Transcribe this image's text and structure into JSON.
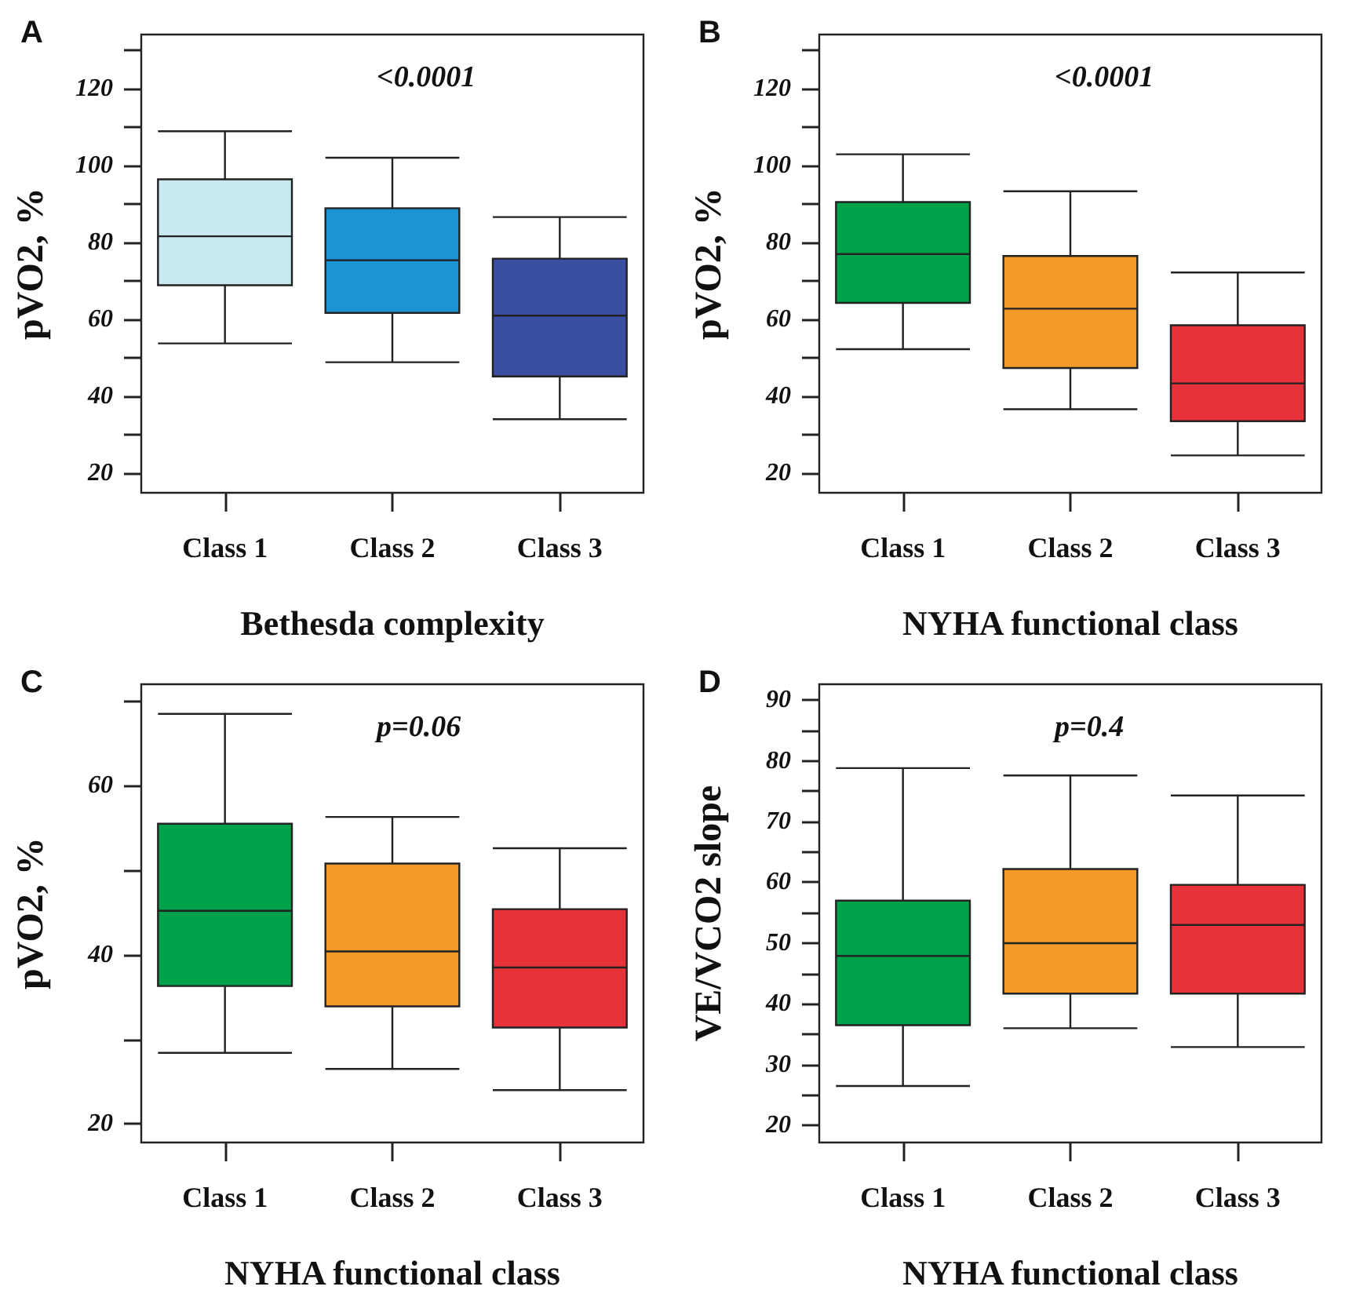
{
  "chart_data": [
    {
      "type": "box",
      "title": "A",
      "xlabel": "Bethesda complexity",
      "ylabel": "pVO2, %",
      "annotations": [
        "<0.0001"
      ],
      "categories": [
        "Class 1",
        "Class 2",
        "Class 3"
      ],
      "colors": [
        "#c9e9f1",
        "#1c93d2",
        "#3a4fa1"
      ],
      "boxes": [
        {
          "low": 53.8,
          "q1": 68.9,
          "median": 81.6,
          "q3": 96.4,
          "high": 108.9
        },
        {
          "low": 48.9,
          "q1": 61.7,
          "median": 75.4,
          "q3": 88.9,
          "high": 102
        },
        {
          "low": 34.1,
          "q1": 45.2,
          "median": 61,
          "q3": 75.8,
          "high": 86.6
        }
      ],
      "ylim": [
        15,
        134
      ],
      "yticks": [
        20,
        {
          "value": 30,
          "label": null
        },
        40,
        {
          "value": 50,
          "label": null
        },
        60,
        {
          "value": 70,
          "label": null
        },
        80,
        {
          "value": 90,
          "label": null
        },
        100,
        {
          "value": 110,
          "label": null
        },
        120,
        {
          "value": 130,
          "label": null
        }
      ]
    },
    {
      "type": "box",
      "title": "B",
      "xlabel": "NYHA functional class",
      "ylabel": "pVO2, %",
      "annotations": [
        "<0.0001"
      ],
      "categories": [
        "Class 1",
        "Class 2",
        "Class 3"
      ],
      "colors": [
        "#00a14b",
        "#f39a2a",
        "#e8323a"
      ],
      "boxes": [
        {
          "low": 52.3,
          "q1": 64.3,
          "median": 77,
          "q3": 90.5,
          "high": 102.9
        },
        {
          "low": 36.7,
          "q1": 47.4,
          "median": 62.8,
          "q3": 76.5,
          "high": 93.3
        },
        {
          "low": 24.7,
          "q1": 33.6,
          "median": 43.4,
          "q3": 58.5,
          "high": 72.2
        }
      ],
      "ylim": [
        15,
        134
      ],
      "yticks": [
        20,
        {
          "value": 30,
          "label": null
        },
        40,
        {
          "value": 50,
          "label": null
        },
        60,
        {
          "value": 70,
          "label": null
        },
        80,
        {
          "value": 90,
          "label": null
        },
        100,
        {
          "value": 110,
          "label": null
        },
        120,
        {
          "value": 130,
          "label": null
        }
      ]
    },
    {
      "type": "box",
      "title": "C",
      "xlabel": "NYHA functional class",
      "ylabel": "pVO2, %",
      "annotations": [
        "p=0.06"
      ],
      "categories": [
        "Class 1",
        "Class 2",
        "Class 3"
      ],
      "colors": [
        "#00a14b",
        "#f39a2a",
        "#e8323a"
      ],
      "boxes": [
        {
          "low": 28.4,
          "q1": 36.3,
          "median": 45.2,
          "q3": 55.5,
          "high": 68.5
        },
        {
          "low": 26.5,
          "q1": 33.9,
          "median": 40.4,
          "q3": 50.8,
          "high": 56.3
        },
        {
          "low": 24,
          "q1": 31.4,
          "median": 38.5,
          "q3": 45.4,
          "high": 52.6
        }
      ],
      "ylim": [
        17.8,
        72
      ],
      "yticks": [
        20,
        {
          "value": 30,
          "label": null
        },
        40,
        {
          "value": 50,
          "label": null
        },
        60,
        {
          "value": 70,
          "label": null
        }
      ]
    },
    {
      "type": "box",
      "title": "D",
      "xlabel": "NYHA functional class",
      "ylabel": "VE/VCO2 slope",
      "annotations": [
        "p=0.4"
      ],
      "categories": [
        "Class 1",
        "Class 2",
        "Class 3"
      ],
      "colors": [
        "#00a14b",
        "#f39a2a",
        "#e8323a"
      ],
      "boxes": [
        {
          "low": 26.5,
          "q1": 36.5,
          "median": 47.9,
          "q3": 57,
          "high": 78.8
        },
        {
          "low": 36,
          "q1": 41.7,
          "median": 50,
          "q3": 62.2,
          "high": 77.6
        },
        {
          "low": 32.9,
          "q1": 41.7,
          "median": 53,
          "q3": 59.6,
          "high": 74.3
        }
      ],
      "ylim": [
        17.2,
        92.6
      ],
      "yticks": [
        20,
        {
          "value": 25,
          "label": null
        },
        30,
        {
          "value": 35,
          "label": null
        },
        40,
        {
          "value": 45,
          "label": null
        },
        50,
        {
          "value": 55,
          "label": null
        },
        60,
        {
          "value": 65,
          "label": null
        },
        70,
        {
          "value": 75,
          "label": null
        },
        80,
        {
          "value": 85,
          "label": null
        },
        90
      ]
    }
  ]
}
